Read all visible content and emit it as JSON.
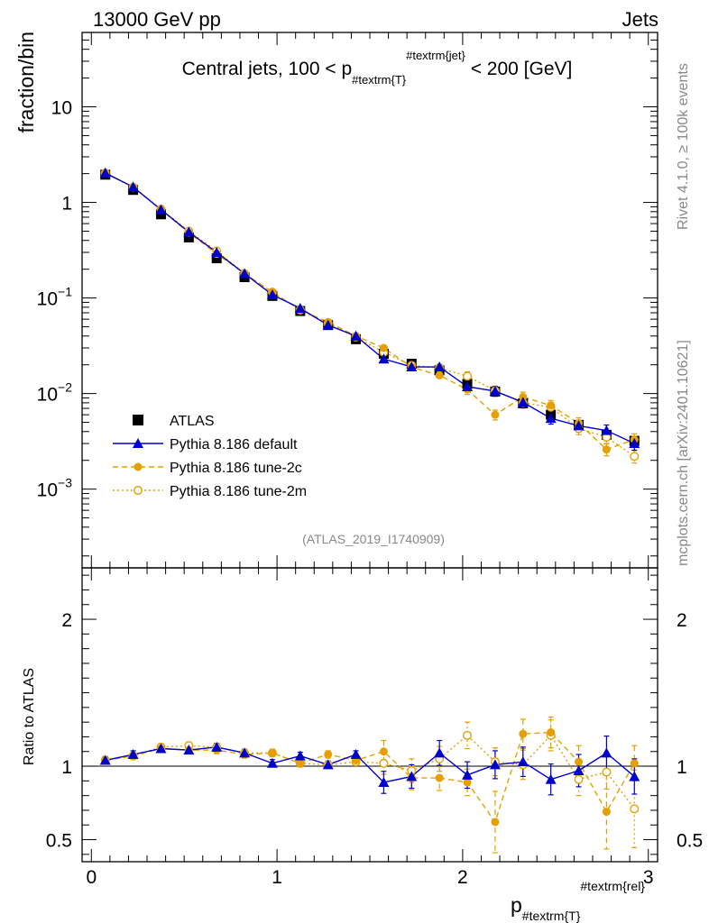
{
  "header": {
    "left": "13000 GeV pp",
    "right": "Jets"
  },
  "side_labels": {
    "rivet": "Rivet 4.1.0, ≥ 100k events",
    "mcplots": "mcplots.cern.ch [arXiv:2401.10621]"
  },
  "chart_data": {
    "type": "line",
    "title": "Central jets, 100 < p_{#textrm{T}}^{#textrm{jet}} < 200 [GeV]",
    "title_parts": {
      "pre": "Central jets, 100 < p",
      "sub": "#textrm{T}",
      "sup": "#textrm{jet}",
      "post": " < 200 [GeV]"
    },
    "ylabel": "fraction/bin",
    "ratio_ylabel": "Ratio to ATLAS",
    "xlabel_parts": {
      "base": "p",
      "sub": "#textrm{T}",
      "sup": "#textrm{rel}"
    },
    "analysis_id": "(ATLAS_2019_I1740909)",
    "xlim": [
      -0.05,
      3.05
    ],
    "ylim": [
      0.00015,
      60
    ],
    "ratio_ylim": [
      0.35,
      2.35
    ],
    "y_scale": "log",
    "x_ticks": [
      "0",
      "1",
      "2",
      "3"
    ],
    "y_ticks": [
      "10^-3",
      "10^-2",
      "10^-1",
      "1",
      "10"
    ],
    "ratio_ticks": [
      "0.5",
      "1",
      "2"
    ],
    "legend_position": "lower-left",
    "x": [
      0.075,
      0.225,
      0.375,
      0.525,
      0.675,
      0.825,
      0.975,
      1.125,
      1.275,
      1.425,
      1.575,
      1.725,
      1.875,
      2.025,
      2.175,
      2.325,
      2.475,
      2.625,
      2.775,
      2.925
    ],
    "series": [
      {
        "name": "ATLAS",
        "color": "#000000",
        "style": "marker-square",
        "values": [
          1.95,
          1.35,
          0.75,
          0.43,
          0.26,
          0.165,
          0.105,
          0.073,
          0.052,
          0.037,
          0.026,
          0.0205,
          0.0175,
          0.0126,
          0.0105,
          0.0079,
          0.006,
          0.0047,
          0.0037,
          0.0032
        ]
      },
      {
        "name": "Pythia 8.186 default",
        "color": "#0000cc",
        "style": "solid-triangle",
        "values": [
          2.03,
          1.45,
          0.84,
          0.49,
          0.3,
          0.18,
          0.108,
          0.078,
          0.052,
          0.04,
          0.023,
          0.019,
          0.019,
          0.0118,
          0.0106,
          0.0081,
          0.0055,
          0.0046,
          0.0041,
          0.003
        ],
        "ratio": [
          1.04,
          1.08,
          1.12,
          1.11,
          1.13,
          1.09,
          1.02,
          1.07,
          1.01,
          1.08,
          0.89,
          0.93,
          1.09,
          0.94,
          1.01,
          1.03,
          0.91,
          0.97,
          1.09,
          0.93
        ]
      },
      {
        "name": "Pythia 8.186 tune-2c",
        "color": "#e69f00",
        "style": "dashed-filled-circle",
        "values": [
          2.03,
          1.44,
          0.84,
          0.48,
          0.29,
          0.18,
          0.115,
          0.075,
          0.056,
          0.04,
          0.03,
          0.0189,
          0.0155,
          0.011,
          0.006,
          0.0092,
          0.0075,
          0.0049,
          0.0026,
          0.0033
        ],
        "ratio": [
          1.04,
          1.07,
          1.12,
          1.11,
          1.11,
          1.08,
          1.09,
          1.02,
          1.08,
          1.04,
          1.1,
          0.92,
          0.92,
          0.89,
          0.62,
          1.22,
          1.23,
          1.03,
          0.69,
          1.02
        ]
      },
      {
        "name": "Pythia 8.186 tune-2m",
        "color": "#e69f00",
        "style": "dotted-open-circle",
        "values": [
          2.03,
          1.44,
          0.85,
          0.5,
          0.31,
          0.18,
          0.115,
          0.075,
          0.054,
          0.039,
          0.027,
          0.0197,
          0.0185,
          0.0152,
          0.0107,
          0.008,
          0.0072,
          0.0043,
          0.0035,
          0.0022
        ],
        "ratio": [
          1.04,
          1.07,
          1.13,
          1.14,
          1.13,
          1.09,
          1.09,
          1.02,
          1.01,
          1.03,
          1.02,
          0.97,
          1.05,
          1.21,
          1.03,
          1.01,
          1.21,
          0.91,
          0.96,
          0.71
        ]
      }
    ]
  }
}
